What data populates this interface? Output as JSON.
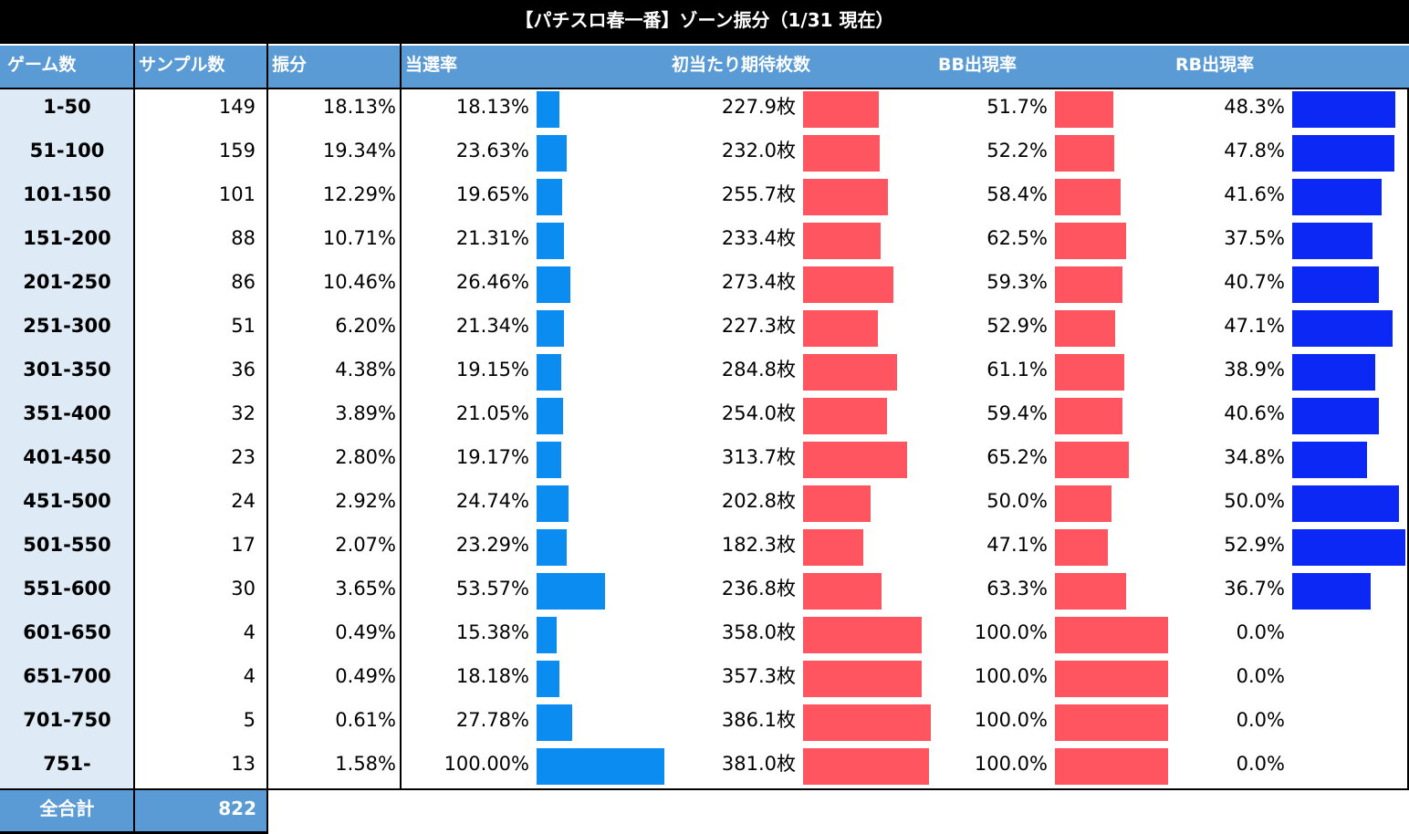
{
  "title": "【パチスロ春一番】ゾーン振分（1/31 現在）",
  "headers": {
    "zone": "ゲーム数",
    "samples": "サンプル数",
    "dist": "振分",
    "hit": "当選率",
    "first": "初当たり期待枚数",
    "bb": "BB出現率",
    "rb": "RB出現率"
  },
  "colors": {
    "header": "#5b9bd5",
    "zone_bg": "#deebf7",
    "hit_bar": "#0a8cf0",
    "first_bar": "#ff5560",
    "rb_bar": "#0b28f5"
  },
  "chart_data": {
    "type": "table",
    "rows": [
      {
        "zone": "1-50",
        "samples": "149",
        "dist": "18.13%",
        "hit": "18.13%",
        "hit_v": 18.13,
        "first": "227.9枚",
        "first_v": 227.9,
        "bb": "51.7%",
        "bb_v": 51.7,
        "rb": "48.3%",
        "rb_v": 48.3
      },
      {
        "zone": "51-100",
        "samples": "159",
        "dist": "19.34%",
        "hit": "23.63%",
        "hit_v": 23.63,
        "first": "232.0枚",
        "first_v": 232.0,
        "bb": "52.2%",
        "bb_v": 52.2,
        "rb": "47.8%",
        "rb_v": 47.8
      },
      {
        "zone": "101-150",
        "samples": "101",
        "dist": "12.29%",
        "hit": "19.65%",
        "hit_v": 19.65,
        "first": "255.7枚",
        "first_v": 255.7,
        "bb": "58.4%",
        "bb_v": 58.4,
        "rb": "41.6%",
        "rb_v": 41.6
      },
      {
        "zone": "151-200",
        "samples": "88",
        "dist": "10.71%",
        "hit": "21.31%",
        "hit_v": 21.31,
        "first": "233.4枚",
        "first_v": 233.4,
        "bb": "62.5%",
        "bb_v": 62.5,
        "rb": "37.5%",
        "rb_v": 37.5
      },
      {
        "zone": "201-250",
        "samples": "86",
        "dist": "10.46%",
        "hit": "26.46%",
        "hit_v": 26.46,
        "first": "273.4枚",
        "first_v": 273.4,
        "bb": "59.3%",
        "bb_v": 59.3,
        "rb": "40.7%",
        "rb_v": 40.7
      },
      {
        "zone": "251-300",
        "samples": "51",
        "dist": "6.20%",
        "hit": "21.34%",
        "hit_v": 21.34,
        "first": "227.3枚",
        "first_v": 227.3,
        "bb": "52.9%",
        "bb_v": 52.9,
        "rb": "47.1%",
        "rb_v": 47.1
      },
      {
        "zone": "301-350",
        "samples": "36",
        "dist": "4.38%",
        "hit": "19.15%",
        "hit_v": 19.15,
        "first": "284.8枚",
        "first_v": 284.8,
        "bb": "61.1%",
        "bb_v": 61.1,
        "rb": "38.9%",
        "rb_v": 38.9
      },
      {
        "zone": "351-400",
        "samples": "32",
        "dist": "3.89%",
        "hit": "21.05%",
        "hit_v": 21.05,
        "first": "254.0枚",
        "first_v": 254.0,
        "bb": "59.4%",
        "bb_v": 59.4,
        "rb": "40.6%",
        "rb_v": 40.6
      },
      {
        "zone": "401-450",
        "samples": "23",
        "dist": "2.80%",
        "hit": "19.17%",
        "hit_v": 19.17,
        "first": "313.7枚",
        "first_v": 313.7,
        "bb": "65.2%",
        "bb_v": 65.2,
        "rb": "34.8%",
        "rb_v": 34.8
      },
      {
        "zone": "451-500",
        "samples": "24",
        "dist": "2.92%",
        "hit": "24.74%",
        "hit_v": 24.74,
        "first": "202.8枚",
        "first_v": 202.8,
        "bb": "50.0%",
        "bb_v": 50.0,
        "rb": "50.0%",
        "rb_v": 50.0
      },
      {
        "zone": "501-550",
        "samples": "17",
        "dist": "2.07%",
        "hit": "23.29%",
        "hit_v": 23.29,
        "first": "182.3枚",
        "first_v": 182.3,
        "bb": "47.1%",
        "bb_v": 47.1,
        "rb": "52.9%",
        "rb_v": 52.9
      },
      {
        "zone": "551-600",
        "samples": "30",
        "dist": "3.65%",
        "hit": "53.57%",
        "hit_v": 53.57,
        "first": "236.8枚",
        "first_v": 236.8,
        "bb": "63.3%",
        "bb_v": 63.3,
        "rb": "36.7%",
        "rb_v": 36.7
      },
      {
        "zone": "601-650",
        "samples": "4",
        "dist": "0.49%",
        "hit": "15.38%",
        "hit_v": 15.38,
        "first": "358.0枚",
        "first_v": 358.0,
        "bb": "100.0%",
        "bb_v": 100.0,
        "rb": "0.0%",
        "rb_v": 0.0
      },
      {
        "zone": "651-700",
        "samples": "4",
        "dist": "0.49%",
        "hit": "18.18%",
        "hit_v": 18.18,
        "first": "357.3枚",
        "first_v": 357.3,
        "bb": "100.0%",
        "bb_v": 100.0,
        "rb": "0.0%",
        "rb_v": 0.0
      },
      {
        "zone": "701-750",
        "samples": "5",
        "dist": "0.61%",
        "hit": "27.78%",
        "hit_v": 27.78,
        "first": "386.1枚",
        "first_v": 386.1,
        "bb": "100.0%",
        "bb_v": 100.0,
        "rb": "0.0%",
        "rb_v": 0.0
      },
      {
        "zone": "751-",
        "samples": "13",
        "dist": "1.58%",
        "hit": "100.00%",
        "hit_v": 100.0,
        "first": "381.0枚",
        "first_v": 381.0,
        "bb": "100.0%",
        "bb_v": 100.0,
        "rb": "0.0%",
        "rb_v": 0.0
      }
    ]
  },
  "total": {
    "label": "全合計",
    "value": "822"
  }
}
